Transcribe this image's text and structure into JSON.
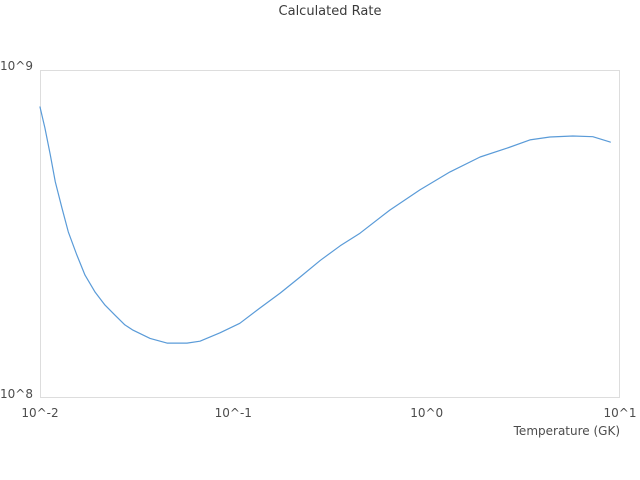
{
  "page": {
    "background_color": "#ffffff",
    "frame_color": "#dddddd",
    "text_color": "#4c4c4c",
    "title_color": "#3b3b3b"
  },
  "chart_data": {
    "type": "line",
    "title": "Calculated Rate",
    "xlabel": "Temperature (GK)",
    "ylabel": "",
    "x_scale": "log",
    "y_scale": "log",
    "xlim": [
      0.01,
      10
    ],
    "ylim": [
      100000000,
      1000000000
    ],
    "grid": false,
    "legend_position": "none",
    "line_color": "#5a9bd8",
    "x_ticks": [
      {
        "value": 0.01,
        "label": "10^-2"
      },
      {
        "value": 0.1,
        "label": "10^-1"
      },
      {
        "value": 1,
        "label": "10^0"
      },
      {
        "value": 10,
        "label": "10^1"
      }
    ],
    "y_ticks": [
      {
        "value": 100000000,
        "label": "10^8"
      },
      {
        "value": 1000000000,
        "label": "10^9"
      }
    ],
    "x": [
      0.01,
      0.0106,
      0.0113,
      0.012,
      0.013,
      0.014,
      0.0155,
      0.0171,
      0.0193,
      0.0217,
      0.0244,
      0.0275,
      0.0303,
      0.0371,
      0.0454,
      0.0576,
      0.0672,
      0.0853,
      0.108,
      0.137,
      0.175,
      0.222,
      0.282,
      0.357,
      0.452,
      0.645,
      0.923,
      1.32,
      1.89,
      2.61,
      3.42,
      4.34,
      5.7,
      7.23,
      8.91
    ],
    "y": [
      771000000.0,
      666000000.0,
      551000000.0,
      456000000.0,
      379000000.0,
      321000000.0,
      273000000.0,
      237000000.0,
      210000000.0,
      192000000.0,
      179000000.0,
      167000000.0,
      161000000.0,
      152000000.0,
      147000000.0,
      147000000.0,
      149000000.0,
      158000000.0,
      169000000.0,
      188000000.0,
      209000000.0,
      234000000.0,
      263000000.0,
      291000000.0,
      318000000.0,
      374000000.0,
      431000000.0,
      489000000.0,
      543000000.0,
      578000000.0,
      612000000.0,
      625000000.0,
      629000000.0,
      626000000.0,
      603000000.0
    ]
  }
}
